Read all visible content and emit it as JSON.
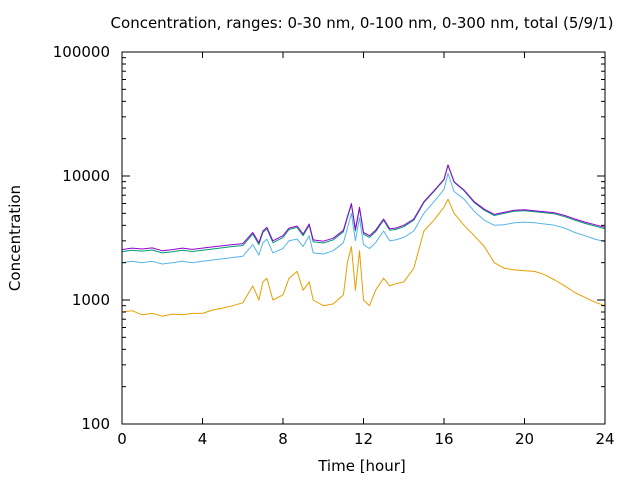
{
  "chart_data": {
    "type": "line",
    "title": "Concentration, ranges: 0-30 nm, 0-100 nm, 0-300 nm, total (5/9/1)",
    "xlabel": "Time [hour]",
    "ylabel": "Concentration",
    "xlim": [
      0,
      24
    ],
    "ylim": [
      100,
      100000
    ],
    "yscale": "log",
    "grid": false,
    "x_ticks": [
      0,
      4,
      8,
      12,
      16,
      20,
      24
    ],
    "x_tick_labels": [
      "0",
      "4",
      "8",
      "12",
      "16",
      "20",
      "24"
    ],
    "y_ticks": [
      100,
      1000,
      10000,
      100000
    ],
    "y_tick_labels": [
      "100",
      "1000",
      "10000",
      "100000"
    ],
    "series": [
      {
        "color": "#e69f00",
        "x": [
          0,
          0.5,
          1,
          1.5,
          2,
          2.5,
          3,
          3.5,
          4,
          4.5,
          5,
          5.5,
          6,
          6.5,
          6.8,
          7,
          7.2,
          7.5,
          8,
          8.3,
          8.7,
          9,
          9.3,
          9.5,
          10,
          10.5,
          11,
          11.2,
          11.4,
          11.6,
          11.8,
          12,
          12.3,
          12.6,
          13,
          13.3,
          13.6,
          14,
          14.5,
          15,
          15.5,
          16,
          16.2,
          16.5,
          17,
          17.5,
          18,
          18.5,
          19,
          19.5,
          20,
          20.5,
          21,
          21.5,
          22,
          22.5,
          23,
          23.5,
          24
        ],
        "y": [
          800,
          820,
          760,
          780,
          740,
          770,
          760,
          780,
          780,
          830,
          860,
          900,
          950,
          1300,
          1000,
          1400,
          1500,
          1000,
          1100,
          1500,
          1700,
          1200,
          1400,
          1000,
          900,
          930,
          1100,
          2000,
          2700,
          1200,
          2500,
          1000,
          900,
          1200,
          1500,
          1300,
          1350,
          1400,
          1800,
          3600,
          4400,
          5600,
          6500,
          5000,
          4000,
          3300,
          2700,
          2000,
          1800,
          1750,
          1720,
          1700,
          1600,
          1450,
          1300,
          1150,
          1050,
          960,
          900
        ]
      },
      {
        "color": "#56b4e9",
        "x": [
          0,
          0.5,
          1,
          1.5,
          2,
          2.5,
          3,
          3.5,
          4,
          4.5,
          5,
          5.5,
          6,
          6.5,
          6.8,
          7,
          7.2,
          7.5,
          8,
          8.3,
          8.7,
          9,
          9.3,
          9.5,
          10,
          10.5,
          11,
          11.2,
          11.4,
          11.6,
          11.8,
          12,
          12.3,
          12.6,
          13,
          13.3,
          13.6,
          14,
          14.5,
          15,
          15.5,
          16,
          16.2,
          16.5,
          17,
          17.5,
          18,
          18.5,
          19,
          19.5,
          20,
          20.5,
          21,
          21.5,
          22,
          22.5,
          23,
          23.5,
          24
        ],
        "y": [
          2000,
          2050,
          2000,
          2050,
          1950,
          2000,
          2050,
          2000,
          2050,
          2100,
          2150,
          2200,
          2250,
          2800,
          2300,
          2900,
          3100,
          2400,
          2600,
          3000,
          3100,
          2700,
          3300,
          2400,
          2350,
          2500,
          2900,
          3800,
          5000,
          3000,
          4600,
          2800,
          2600,
          2900,
          3600,
          3000,
          3050,
          3200,
          3600,
          5000,
          6200,
          7800,
          10500,
          7500,
          6500,
          5200,
          4400,
          4000,
          4050,
          4200,
          4250,
          4200,
          4100,
          4000,
          3800,
          3500,
          3300,
          3100,
          2950
        ]
      },
      {
        "color": "#009e73",
        "x": [
          0,
          0.5,
          1,
          1.5,
          2,
          2.5,
          3,
          3.5,
          4,
          4.5,
          5,
          5.5,
          6,
          6.5,
          6.8,
          7,
          7.2,
          7.5,
          8,
          8.3,
          8.7,
          9,
          9.3,
          9.5,
          10,
          10.5,
          11,
          11.2,
          11.4,
          11.6,
          11.8,
          12,
          12.3,
          12.6,
          13,
          13.3,
          13.6,
          14,
          14.5,
          15,
          15.5,
          16,
          16.2,
          16.5,
          17,
          17.5,
          18,
          18.5,
          19,
          19.5,
          20,
          20.5,
          21,
          21.5,
          22,
          22.5,
          23,
          23.5,
          24
        ],
        "y": [
          2450,
          2520,
          2480,
          2530,
          2400,
          2450,
          2520,
          2460,
          2520,
          2580,
          2640,
          2700,
          2750,
          3400,
          2800,
          3500,
          3750,
          2900,
          3200,
          3700,
          3850,
          3300,
          4000,
          2950,
          2880,
          3050,
          3550,
          4600,
          5900,
          3600,
          5500,
          3400,
          3200,
          3550,
          4400,
          3650,
          3700,
          3900,
          4400,
          6100,
          7500,
          9300,
          12200,
          8900,
          7600,
          6100,
          5300,
          4800,
          5000,
          5200,
          5250,
          5150,
          5050,
          4950,
          4700,
          4400,
          4150,
          3950,
          3750
        ]
      },
      {
        "color": "#9400d3",
        "x": [
          0,
          0.5,
          1,
          1.5,
          2,
          2.5,
          3,
          3.5,
          4,
          4.5,
          5,
          5.5,
          6,
          6.5,
          6.8,
          7,
          7.2,
          7.5,
          8,
          8.3,
          8.7,
          9,
          9.3,
          9.5,
          10,
          10.5,
          11,
          11.2,
          11.4,
          11.6,
          11.8,
          12,
          12.3,
          12.6,
          13,
          13.3,
          13.6,
          14,
          14.5,
          15,
          15.5,
          16,
          16.2,
          16.5,
          17,
          17.5,
          18,
          18.5,
          19,
          19.5,
          20,
          20.5,
          21,
          21.5,
          22,
          22.5,
          23,
          23.5,
          24
        ],
        "y": [
          2550,
          2620,
          2580,
          2630,
          2500,
          2550,
          2620,
          2560,
          2620,
          2680,
          2740,
          2800,
          2850,
          3500,
          2900,
          3600,
          3850,
          3000,
          3300,
          3800,
          3950,
          3400,
          4100,
          3050,
          2980,
          3150,
          3650,
          4700,
          6000,
          3700,
          5600,
          3500,
          3300,
          3650,
          4500,
          3750,
          3800,
          4000,
          4500,
          6200,
          7600,
          9400,
          12300,
          9000,
          7700,
          6200,
          5400,
          4900,
          5100,
          5300,
          5350,
          5250,
          5150,
          5050,
          4800,
          4500,
          4250,
          4050,
          3850
        ]
      }
    ]
  }
}
